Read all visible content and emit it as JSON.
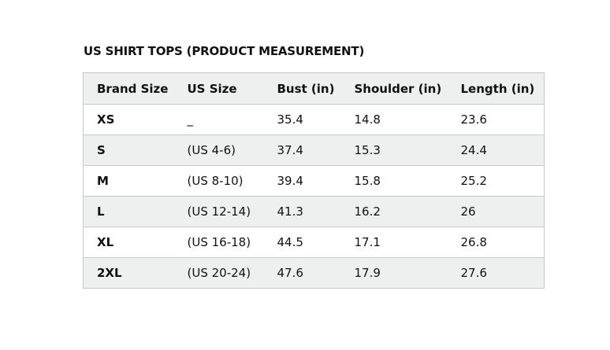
{
  "title": "US SHIRT TOPS (PRODUCT MEASUREMENT)",
  "table": {
    "headers": [
      "Brand Size",
      "US Size",
      "Bust (in)",
      "Shoulder (in)",
      "Length (in)"
    ],
    "rows": [
      [
        "XS",
        "_",
        "35.4",
        "14.8",
        "23.6"
      ],
      [
        "S",
        "(US 4-6)",
        "37.4",
        "15.3",
        "24.4"
      ],
      [
        "M",
        "(US 8-10)",
        "39.4",
        "15.8",
        "25.2"
      ],
      [
        "L",
        "(US 12-14)",
        "41.3",
        "16.2",
        "26"
      ],
      [
        "XL",
        "(US 16-18)",
        "44.5",
        "17.1",
        "26.8"
      ],
      [
        "2XL",
        "(US 20-24)",
        "47.6",
        "17.9",
        "27.6"
      ]
    ]
  }
}
